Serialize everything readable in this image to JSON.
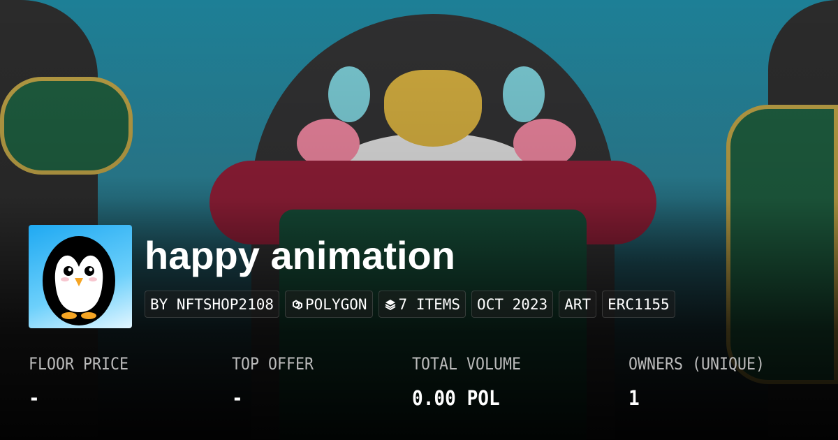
{
  "collection": {
    "title": "happy animation",
    "chips": [
      {
        "label": "BY NFTSHOP2108",
        "icon": ""
      },
      {
        "label": "POLYGON",
        "icon": "polygon-chain-icon"
      },
      {
        "label": "7 ITEMS",
        "icon": "layers-icon"
      },
      {
        "label": "OCT 2023",
        "icon": ""
      },
      {
        "label": "ART",
        "icon": ""
      },
      {
        "label": "ERC1155",
        "icon": ""
      }
    ]
  },
  "stats": [
    {
      "label": "FLOOR PRICE",
      "value": "-"
    },
    {
      "label": "TOP OFFER",
      "value": "-"
    },
    {
      "label": "TOTAL VOLUME",
      "value": "0.00 POL"
    },
    {
      "label": "OWNERS (UNIQUE)",
      "value": "1"
    }
  ]
}
